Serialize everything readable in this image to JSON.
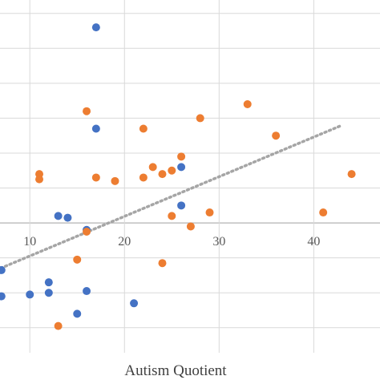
{
  "chart_data": {
    "type": "scatter",
    "title": "",
    "xlabel": "Autism Quotient",
    "ylabel": "",
    "xlim": [
      6,
      47
    ],
    "ylim": [
      -3.9,
      6.2
    ],
    "grid": true,
    "legend": "none",
    "x_ticks": [
      10,
      20,
      30,
      40
    ],
    "x_tick_labels": [
      "10",
      "20",
      "30",
      "40"
    ],
    "y_gridlines": [
      6,
      5,
      4,
      3,
      2,
      1,
      0,
      -1,
      -2,
      -3
    ],
    "x_gridlines": [
      10,
      20,
      30,
      40
    ],
    "series": [
      {
        "color": "#4472C4",
        "points": [
          [
            17,
            5.6
          ],
          [
            17,
            2.7
          ],
          [
            26,
            1.6
          ],
          [
            26,
            0.5
          ],
          [
            13,
            0.2
          ],
          [
            14,
            0.15
          ],
          [
            16,
            -0.2
          ],
          [
            7,
            -1.35
          ],
          [
            6,
            -1.7
          ],
          [
            12,
            -1.7
          ],
          [
            12,
            -2.0
          ],
          [
            16,
            -1.95
          ],
          [
            7,
            -2.1
          ],
          [
            10,
            -2.05
          ],
          [
            21,
            -2.3
          ],
          [
            15,
            -2.6
          ],
          [
            6,
            -2.9
          ]
        ]
      },
      {
        "color": "#ED7D31",
        "points": [
          [
            16,
            3.2
          ],
          [
            17,
            1.3
          ],
          [
            11,
            1.4
          ],
          [
            11,
            1.25
          ],
          [
            19,
            1.2
          ],
          [
            22,
            2.7
          ],
          [
            22,
            1.3
          ],
          [
            23,
            1.6
          ],
          [
            24,
            1.4
          ],
          [
            25,
            1.5
          ],
          [
            26,
            1.9
          ],
          [
            28,
            3.0
          ],
          [
            33,
            3.4
          ],
          [
            36,
            2.5
          ],
          [
            44,
            1.4
          ],
          [
            25,
            0.2
          ],
          [
            27,
            -0.1
          ],
          [
            29,
            0.3
          ],
          [
            41,
            0.3
          ],
          [
            16,
            -0.25
          ],
          [
            15,
            -1.05
          ],
          [
            24,
            -1.15
          ],
          [
            13,
            -2.95
          ]
        ]
      }
    ],
    "trendline": {
      "color": "#A5A5A5",
      "style": "dotted",
      "x": [
        6,
        43
      ],
      "y": [
        -1.4,
        2.8
      ]
    }
  }
}
